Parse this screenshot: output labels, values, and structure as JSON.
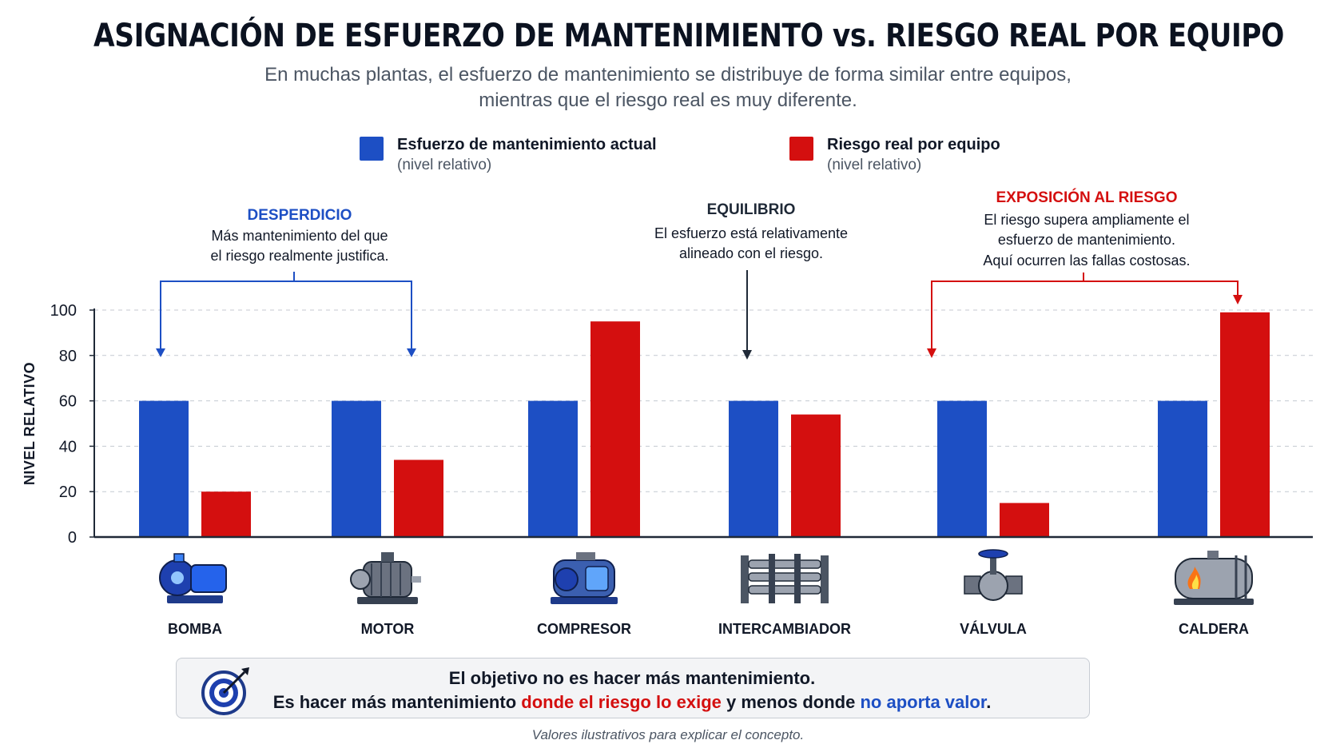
{
  "title": "ASIGNACIÓN DE ESFUERZO DE MANTENIMIENTO vs. RIESGO REAL POR EQUIPO",
  "subtitle_line1": "En muchas plantas, el esfuerzo de mantenimiento se distribuye de forma similar entre equipos,",
  "subtitle_line2": "mientras que el riesgo real es muy diferente.",
  "legend": {
    "effort": {
      "label": "Esfuerzo de mantenimiento actual",
      "sub": "(nivel relativo)",
      "color": "#1d4fc4"
    },
    "risk": {
      "label": "Riesgo real por equipo",
      "sub": "(nivel relativo)",
      "color": "#d40f0f"
    }
  },
  "annotations": {
    "waste": {
      "title": "DESPERDICIO",
      "line1": "Más mantenimiento del que",
      "line2": "el riesgo realmente justifica.",
      "color": "#1d4fc4"
    },
    "balance": {
      "title": "EQUILIBRIO",
      "line1": "El esfuerzo está relativamente",
      "line2": "alineado con el riesgo.",
      "color": "#1f2937"
    },
    "exposure": {
      "title": "EXPOSICIÓN AL RIESGO",
      "line1": "El riesgo supera ampliamente el",
      "line2": "esfuerzo de mantenimiento.",
      "line3": "Aquí ocurren las fallas costosas.",
      "color": "#d40f0f"
    }
  },
  "chart_data": {
    "type": "bar",
    "categories": [
      "BOMBA",
      "MOTOR",
      "COMPRESOR",
      "INTERCAMBIADOR",
      "VÁLVULA",
      "CALDERA"
    ],
    "category_icons": [
      "pump-icon",
      "motor-icon",
      "compressor-icon",
      "heat-exchanger-icon",
      "valve-icon",
      "boiler-icon"
    ],
    "series": [
      {
        "name": "Esfuerzo de mantenimiento actual",
        "values": [
          60,
          60,
          60,
          60,
          60,
          60
        ],
        "color": "#1d4fc4"
      },
      {
        "name": "Riesgo real por equipo",
        "values": [
          20,
          34,
          95,
          54,
          15,
          99
        ],
        "color": "#d40f0f"
      }
    ],
    "ylabel": "NIVEL RELATIVO",
    "ylim": [
      0,
      100
    ],
    "yticks": [
      0,
      20,
      40,
      60,
      80,
      100
    ],
    "grid": true
  },
  "callout": {
    "line1": "El objetivo no es hacer más mantenimiento.",
    "line2_a": "Es hacer más mantenimiento ",
    "line2_b": "donde el riesgo lo exige",
    "line2_c": " y menos donde ",
    "line2_d": "no aporta valor",
    "line2_e": ".",
    "icon": "target-icon"
  },
  "footnote": "Valores ilustrativos para explicar el concepto."
}
